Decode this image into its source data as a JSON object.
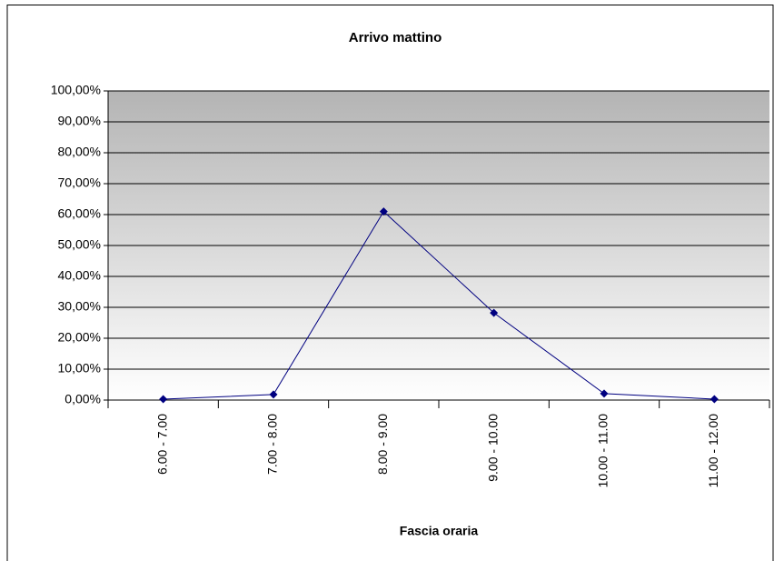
{
  "chart_data": {
    "type": "line",
    "title": "Arrivo mattino",
    "x_label": "Fascia oraria",
    "categories": [
      "6.00 - 7.00",
      "7.00 - 8.00",
      "8.00 - 9.00",
      "9.00 - 10.00",
      "10.00 - 11.00",
      "11.00 - 12.00"
    ],
    "series": [
      {
        "name": "Arrivo mattino",
        "color": "#000080",
        "values": [
          0.3,
          1.8,
          61,
          28.2,
          2.1,
          0.3
        ]
      }
    ],
    "ylim": [
      0,
      100
    ],
    "yticks": [
      {
        "value": 0,
        "label": "0,00%"
      },
      {
        "value": 10,
        "label": "10,00%"
      },
      {
        "value": 20,
        "label": "20,00%"
      },
      {
        "value": 30,
        "label": "30,00%"
      },
      {
        "value": 40,
        "label": "40,00%"
      },
      {
        "value": 50,
        "label": "50,00%"
      },
      {
        "value": 60,
        "label": "60,00%"
      },
      {
        "value": 70,
        "label": "70,00%"
      },
      {
        "value": 80,
        "label": "80,00%"
      },
      {
        "value": 90,
        "label": "90,00%"
      },
      {
        "value": 100,
        "label": "100,00%"
      }
    ],
    "grid": true
  }
}
